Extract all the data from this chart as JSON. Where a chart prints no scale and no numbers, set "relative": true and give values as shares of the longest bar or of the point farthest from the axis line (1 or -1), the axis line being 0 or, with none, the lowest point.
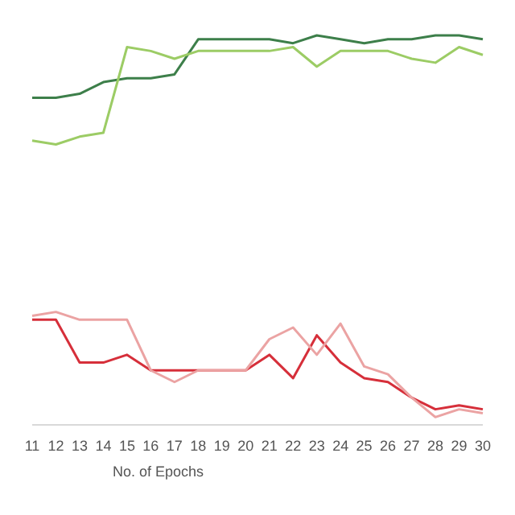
{
  "chart_data": {
    "type": "line",
    "xlabel": "No. of Epochs",
    "relative": true,
    "categories": [
      "11",
      "12",
      "13",
      "14",
      "15",
      "16",
      "17",
      "18",
      "19",
      "20",
      "21",
      "22",
      "23",
      "24",
      "25",
      "26",
      "27",
      "28",
      "29",
      "30"
    ],
    "series": [
      {
        "color": "#3d7f4a",
        "values": [
          0.84,
          0.84,
          0.85,
          0.88,
          0.89,
          0.89,
          0.9,
          0.99,
          0.99,
          0.99,
          0.99,
          0.98,
          1,
          0.99,
          0.98,
          0.99,
          0.99,
          1,
          1,
          0.99
        ]
      },
      {
        "color": "#9ccc65",
        "values": [
          0.73,
          0.72,
          0.74,
          0.75,
          0.97,
          0.96,
          0.94,
          0.96,
          0.96,
          0.96,
          0.96,
          0.97,
          0.92,
          0.96,
          0.96,
          0.96,
          0.94,
          0.93,
          0.97,
          0.95
        ]
      },
      {
        "color": "#d62f3a",
        "values": [
          0.27,
          0.27,
          0.16,
          0.16,
          0.18,
          0.14,
          0.14,
          0.14,
          0.14,
          0.14,
          0.18,
          0.12,
          0.23,
          0.16,
          0.12,
          0.11,
          0.07,
          0.04,
          0.05,
          0.04
        ]
      },
      {
        "color": "#eba3a3",
        "values": [
          0.28,
          0.29,
          0.27,
          0.27,
          0.27,
          0.14,
          0.11,
          0.14,
          0.14,
          0.14,
          0.22,
          0.25,
          0.18,
          0.26,
          0.15,
          0.13,
          0.07,
          0.02,
          0.04,
          0.03
        ]
      }
    ]
  }
}
